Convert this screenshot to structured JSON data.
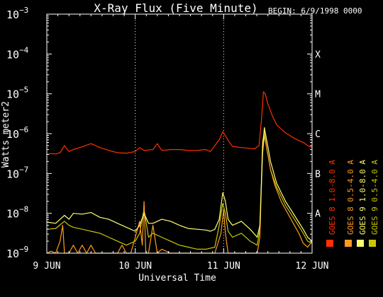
{
  "chart_data": {
    "type": "line",
    "title": "X-Ray Flux (Five Minute)",
    "begin_label": "BEGIN: 6/9/1998 0000",
    "xlabel": "Universal Time",
    "ylabel": "Watts meter2",
    "y_scale": "log",
    "ylim": [
      1e-09,
      0.001
    ],
    "xlim": [
      0,
      3
    ],
    "x_unit": "days since 9 JUN 1998 00:00 UT",
    "x_ticks": [
      {
        "value": 0,
        "label": "9 JUN"
      },
      {
        "value": 1,
        "label": "10 JUN"
      },
      {
        "value": 2,
        "label": "11 JUN"
      },
      {
        "value": 3,
        "label": "12 JUN"
      }
    ],
    "y_ticks": [
      {
        "exp": -9,
        "base": "10",
        "sup": "−9"
      },
      {
        "exp": -8,
        "base": "10",
        "sup": "−8"
      },
      {
        "exp": -7,
        "base": "10",
        "sup": "−7"
      },
      {
        "exp": -6,
        "base": "10",
        "sup": "−6"
      },
      {
        "exp": -5,
        "base": "10",
        "sup": "−5"
      },
      {
        "exp": -4,
        "base": "10",
        "sup": "−4"
      },
      {
        "exp": -3,
        "base": "10",
        "sup": "−3"
      }
    ],
    "class_labels": [
      {
        "label": "A",
        "exp": -8
      },
      {
        "label": "B",
        "exp": -7
      },
      {
        "label": "C",
        "exp": -6
      },
      {
        "label": "M",
        "exp": -5
      },
      {
        "label": "X",
        "exp": -4
      }
    ],
    "vertical_dotted_lines": [
      1,
      2
    ],
    "legend": [
      {
        "name": "GOES 8 1.0-8.0 A",
        "color": "#ff3000"
      },
      {
        "name": "GOES 8 0.5-4.0 A",
        "color": "#ff9a20"
      },
      {
        "name": "GOES 9 1.0-8.0 A",
        "color": "#ffff70"
      },
      {
        "name": "GOES 9 0.5-4.0 A",
        "color": "#c8c800"
      }
    ],
    "series": [
      {
        "name": "GOES 8 1.0-8.0 A",
        "color": "#ff3000",
        "points": [
          [
            0.0,
            -6.52
          ],
          [
            0.05,
            -6.5
          ],
          [
            0.1,
            -6.51
          ],
          [
            0.15,
            -6.48
          ],
          [
            0.2,
            -6.3
          ],
          [
            0.25,
            -6.45
          ],
          [
            0.3,
            -6.4
          ],
          [
            0.4,
            -6.33
          ],
          [
            0.5,
            -6.25
          ],
          [
            0.6,
            -6.35
          ],
          [
            0.7,
            -6.42
          ],
          [
            0.8,
            -6.48
          ],
          [
            0.9,
            -6.49
          ],
          [
            1.0,
            -6.45
          ],
          [
            1.05,
            -6.35
          ],
          [
            1.1,
            -6.42
          ],
          [
            1.2,
            -6.4
          ],
          [
            1.25,
            -6.25
          ],
          [
            1.3,
            -6.42
          ],
          [
            1.4,
            -6.4
          ],
          [
            1.5,
            -6.4
          ],
          [
            1.6,
            -6.42
          ],
          [
            1.7,
            -6.42
          ],
          [
            1.8,
            -6.4
          ],
          [
            1.85,
            -6.45
          ],
          [
            1.9,
            -6.3
          ],
          [
            1.95,
            -6.15
          ],
          [
            1.99,
            -5.95
          ],
          [
            2.02,
            -6.05
          ],
          [
            2.06,
            -6.2
          ],
          [
            2.1,
            -6.32
          ],
          [
            2.2,
            -6.35
          ],
          [
            2.3,
            -6.37
          ],
          [
            2.35,
            -6.38
          ],
          [
            2.4,
            -6.3
          ],
          [
            2.43,
            -5.6
          ],
          [
            2.45,
            -4.95
          ],
          [
            2.47,
            -5.0
          ],
          [
            2.5,
            -5.25
          ],
          [
            2.55,
            -5.55
          ],
          [
            2.6,
            -5.78
          ],
          [
            2.7,
            -5.98
          ],
          [
            2.8,
            -6.12
          ],
          [
            2.9,
            -6.22
          ],
          [
            2.95,
            -6.3
          ],
          [
            3.0,
            -6.35
          ]
        ]
      },
      {
        "name": "GOES 8 0.5-4.0 A",
        "color": "#ff9a20",
        "points": [
          [
            0.0,
            -9.0
          ],
          [
            0.05,
            -8.95
          ],
          [
            0.1,
            -9.0
          ],
          [
            0.15,
            -8.7
          ],
          [
            0.18,
            -8.3
          ],
          [
            0.2,
            -9.0
          ],
          [
            0.25,
            -9.0
          ],
          [
            0.3,
            -8.8
          ],
          [
            0.35,
            -9.0
          ],
          [
            0.4,
            -8.8
          ],
          [
            0.45,
            -9.0
          ],
          [
            0.5,
            -8.8
          ],
          [
            0.55,
            -9.0
          ],
          [
            0.6,
            -9.0
          ],
          [
            0.7,
            -9.0
          ],
          [
            0.8,
            -9.0
          ],
          [
            0.85,
            -8.8
          ],
          [
            0.9,
            -9.0
          ],
          [
            0.95,
            -9.0
          ],
          [
            1.0,
            -8.6
          ],
          [
            1.05,
            -8.2
          ],
          [
            1.08,
            -8.8
          ],
          [
            1.1,
            -7.7
          ],
          [
            1.12,
            -9.0
          ],
          [
            1.15,
            -9.0
          ],
          [
            1.2,
            -8.3
          ],
          [
            1.25,
            -9.0
          ],
          [
            1.3,
            -8.9
          ],
          [
            1.4,
            -9.0
          ],
          [
            1.5,
            -9.0
          ],
          [
            1.6,
            -9.0
          ],
          [
            1.7,
            -9.0
          ],
          [
            1.8,
            -9.0
          ],
          [
            1.9,
            -9.0
          ],
          [
            1.97,
            -8.5
          ],
          [
            2.0,
            -7.9
          ],
          [
            2.02,
            -8.5
          ],
          [
            2.05,
            -9.0
          ],
          [
            2.1,
            -9.0
          ],
          [
            2.2,
            -9.0
          ],
          [
            2.3,
            -9.0
          ],
          [
            2.38,
            -9.0
          ],
          [
            2.41,
            -8.6
          ],
          [
            2.44,
            -6.2
          ],
          [
            2.46,
            -5.95
          ],
          [
            2.49,
            -6.4
          ],
          [
            2.53,
            -6.9
          ],
          [
            2.58,
            -7.3
          ],
          [
            2.65,
            -7.7
          ],
          [
            2.75,
            -8.1
          ],
          [
            2.85,
            -8.5
          ],
          [
            2.9,
            -8.75
          ],
          [
            2.95,
            -8.85
          ],
          [
            3.0,
            -8.7
          ]
        ]
      },
      {
        "name": "GOES 9 1.0-8.0 A",
        "color": "#ffff70",
        "points": [
          [
            0.0,
            -8.22
          ],
          [
            0.1,
            -8.25
          ],
          [
            0.2,
            -8.05
          ],
          [
            0.25,
            -8.15
          ],
          [
            0.3,
            -8.0
          ],
          [
            0.4,
            -8.02
          ],
          [
            0.5,
            -7.98
          ],
          [
            0.6,
            -8.1
          ],
          [
            0.7,
            -8.15
          ],
          [
            0.8,
            -8.25
          ],
          [
            0.9,
            -8.35
          ],
          [
            1.0,
            -8.45
          ],
          [
            1.05,
            -8.3
          ],
          [
            1.1,
            -8.0
          ],
          [
            1.15,
            -8.25
          ],
          [
            1.2,
            -8.25
          ],
          [
            1.3,
            -8.15
          ],
          [
            1.4,
            -8.2
          ],
          [
            1.5,
            -8.3
          ],
          [
            1.6,
            -8.38
          ],
          [
            1.7,
            -8.4
          ],
          [
            1.8,
            -8.42
          ],
          [
            1.85,
            -8.45
          ],
          [
            1.9,
            -8.4
          ],
          [
            1.95,
            -8.15
          ],
          [
            1.99,
            -7.48
          ],
          [
            2.02,
            -7.7
          ],
          [
            2.05,
            -8.15
          ],
          [
            2.1,
            -8.3
          ],
          [
            2.2,
            -8.2
          ],
          [
            2.3,
            -8.4
          ],
          [
            2.38,
            -8.6
          ],
          [
            2.41,
            -8.3
          ],
          [
            2.44,
            -6.4
          ],
          [
            2.46,
            -5.85
          ],
          [
            2.49,
            -6.2
          ],
          [
            2.53,
            -6.7
          ],
          [
            2.6,
            -7.25
          ],
          [
            2.7,
            -7.7
          ],
          [
            2.8,
            -8.05
          ],
          [
            2.9,
            -8.4
          ],
          [
            2.95,
            -8.6
          ],
          [
            3.0,
            -8.7
          ]
        ]
      },
      {
        "name": "GOES 9 0.5-4.0 A",
        "color": "#c8c800",
        "points": [
          [
            0.0,
            -8.4
          ],
          [
            0.1,
            -8.38
          ],
          [
            0.2,
            -8.2
          ],
          [
            0.25,
            -8.3
          ],
          [
            0.3,
            -8.35
          ],
          [
            0.4,
            -8.4
          ],
          [
            0.5,
            -8.45
          ],
          [
            0.6,
            -8.5
          ],
          [
            0.7,
            -8.6
          ],
          [
            0.8,
            -8.7
          ],
          [
            0.9,
            -8.8
          ],
          [
            1.0,
            -8.7
          ],
          [
            1.05,
            -8.5
          ],
          [
            1.1,
            -7.9
          ],
          [
            1.15,
            -8.6
          ],
          [
            1.2,
            -8.5
          ],
          [
            1.3,
            -8.6
          ],
          [
            1.4,
            -8.7
          ],
          [
            1.5,
            -8.8
          ],
          [
            1.6,
            -8.85
          ],
          [
            1.7,
            -8.9
          ],
          [
            1.8,
            -8.9
          ],
          [
            1.9,
            -8.85
          ],
          [
            1.95,
            -8.3
          ],
          [
            1.99,
            -7.75
          ],
          [
            2.02,
            -8.0
          ],
          [
            2.05,
            -8.45
          ],
          [
            2.1,
            -8.6
          ],
          [
            2.2,
            -8.5
          ],
          [
            2.3,
            -8.7
          ],
          [
            2.38,
            -8.8
          ],
          [
            2.41,
            -8.4
          ],
          [
            2.44,
            -6.5
          ],
          [
            2.46,
            -6.05
          ],
          [
            2.49,
            -6.4
          ],
          [
            2.53,
            -6.9
          ],
          [
            2.6,
            -7.35
          ],
          [
            2.7,
            -7.8
          ],
          [
            2.8,
            -8.15
          ],
          [
            2.9,
            -8.5
          ],
          [
            2.95,
            -8.7
          ],
          [
            3.0,
            -8.75
          ]
        ]
      }
    ]
  }
}
